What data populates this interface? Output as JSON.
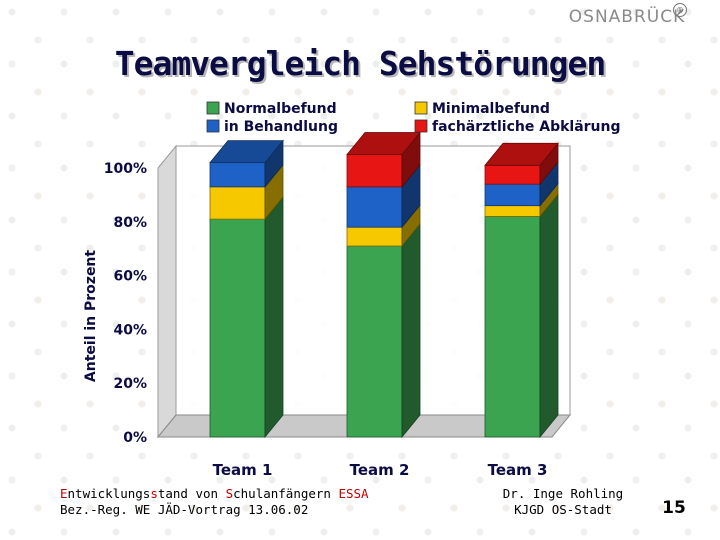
{
  "logo": {
    "text": "OSNABRÜCK",
    "reg_mark": "®"
  },
  "title": "Teamvergleich Sehstörungen",
  "chart_data": {
    "type": "bar",
    "stacked": true,
    "percent": true,
    "categories": [
      "Team 1",
      "Team 2",
      "Team 3"
    ],
    "series": [
      {
        "name": "Normalbefund",
        "color": "#3aa451",
        "values": [
          81,
          71,
          82
        ]
      },
      {
        "name": "Minimalbefund",
        "color": "#f5c800",
        "values": [
          12,
          7,
          4
        ]
      },
      {
        "name": "in Behandlung",
        "color": "#1e62c8",
        "values": [
          9,
          15,
          8
        ]
      },
      {
        "name": "fachärztliche Abklärung",
        "color": "#e81515",
        "values": [
          0,
          12,
          7
        ]
      }
    ],
    "legend_order": [
      "Normalbefund",
      "Minimalbefund",
      "in Behandlung",
      "fachärztliche Abklärung"
    ],
    "legend_placement": "top",
    "ylabel": "Anteil in Prozent",
    "ylim": [
      0,
      100
    ],
    "yticks": [
      "0%",
      "20%",
      "40%",
      "60%",
      "80%",
      "100%"
    ],
    "ytick_values": [
      0,
      20,
      40,
      60,
      80,
      100
    ]
  },
  "footer": {
    "left_line1_parts": [
      "E",
      "ntwicklungs",
      "s",
      "tand von ",
      "S",
      "chulanfängern ",
      "ESSA"
    ],
    "left_line2": "Bez.-Reg. WE JÄD-Vortrag 13.06.02",
    "author_line1": "Dr. Inge Rohling",
    "author_line2": "KJGD OS-Stadt",
    "page_number": "15"
  }
}
